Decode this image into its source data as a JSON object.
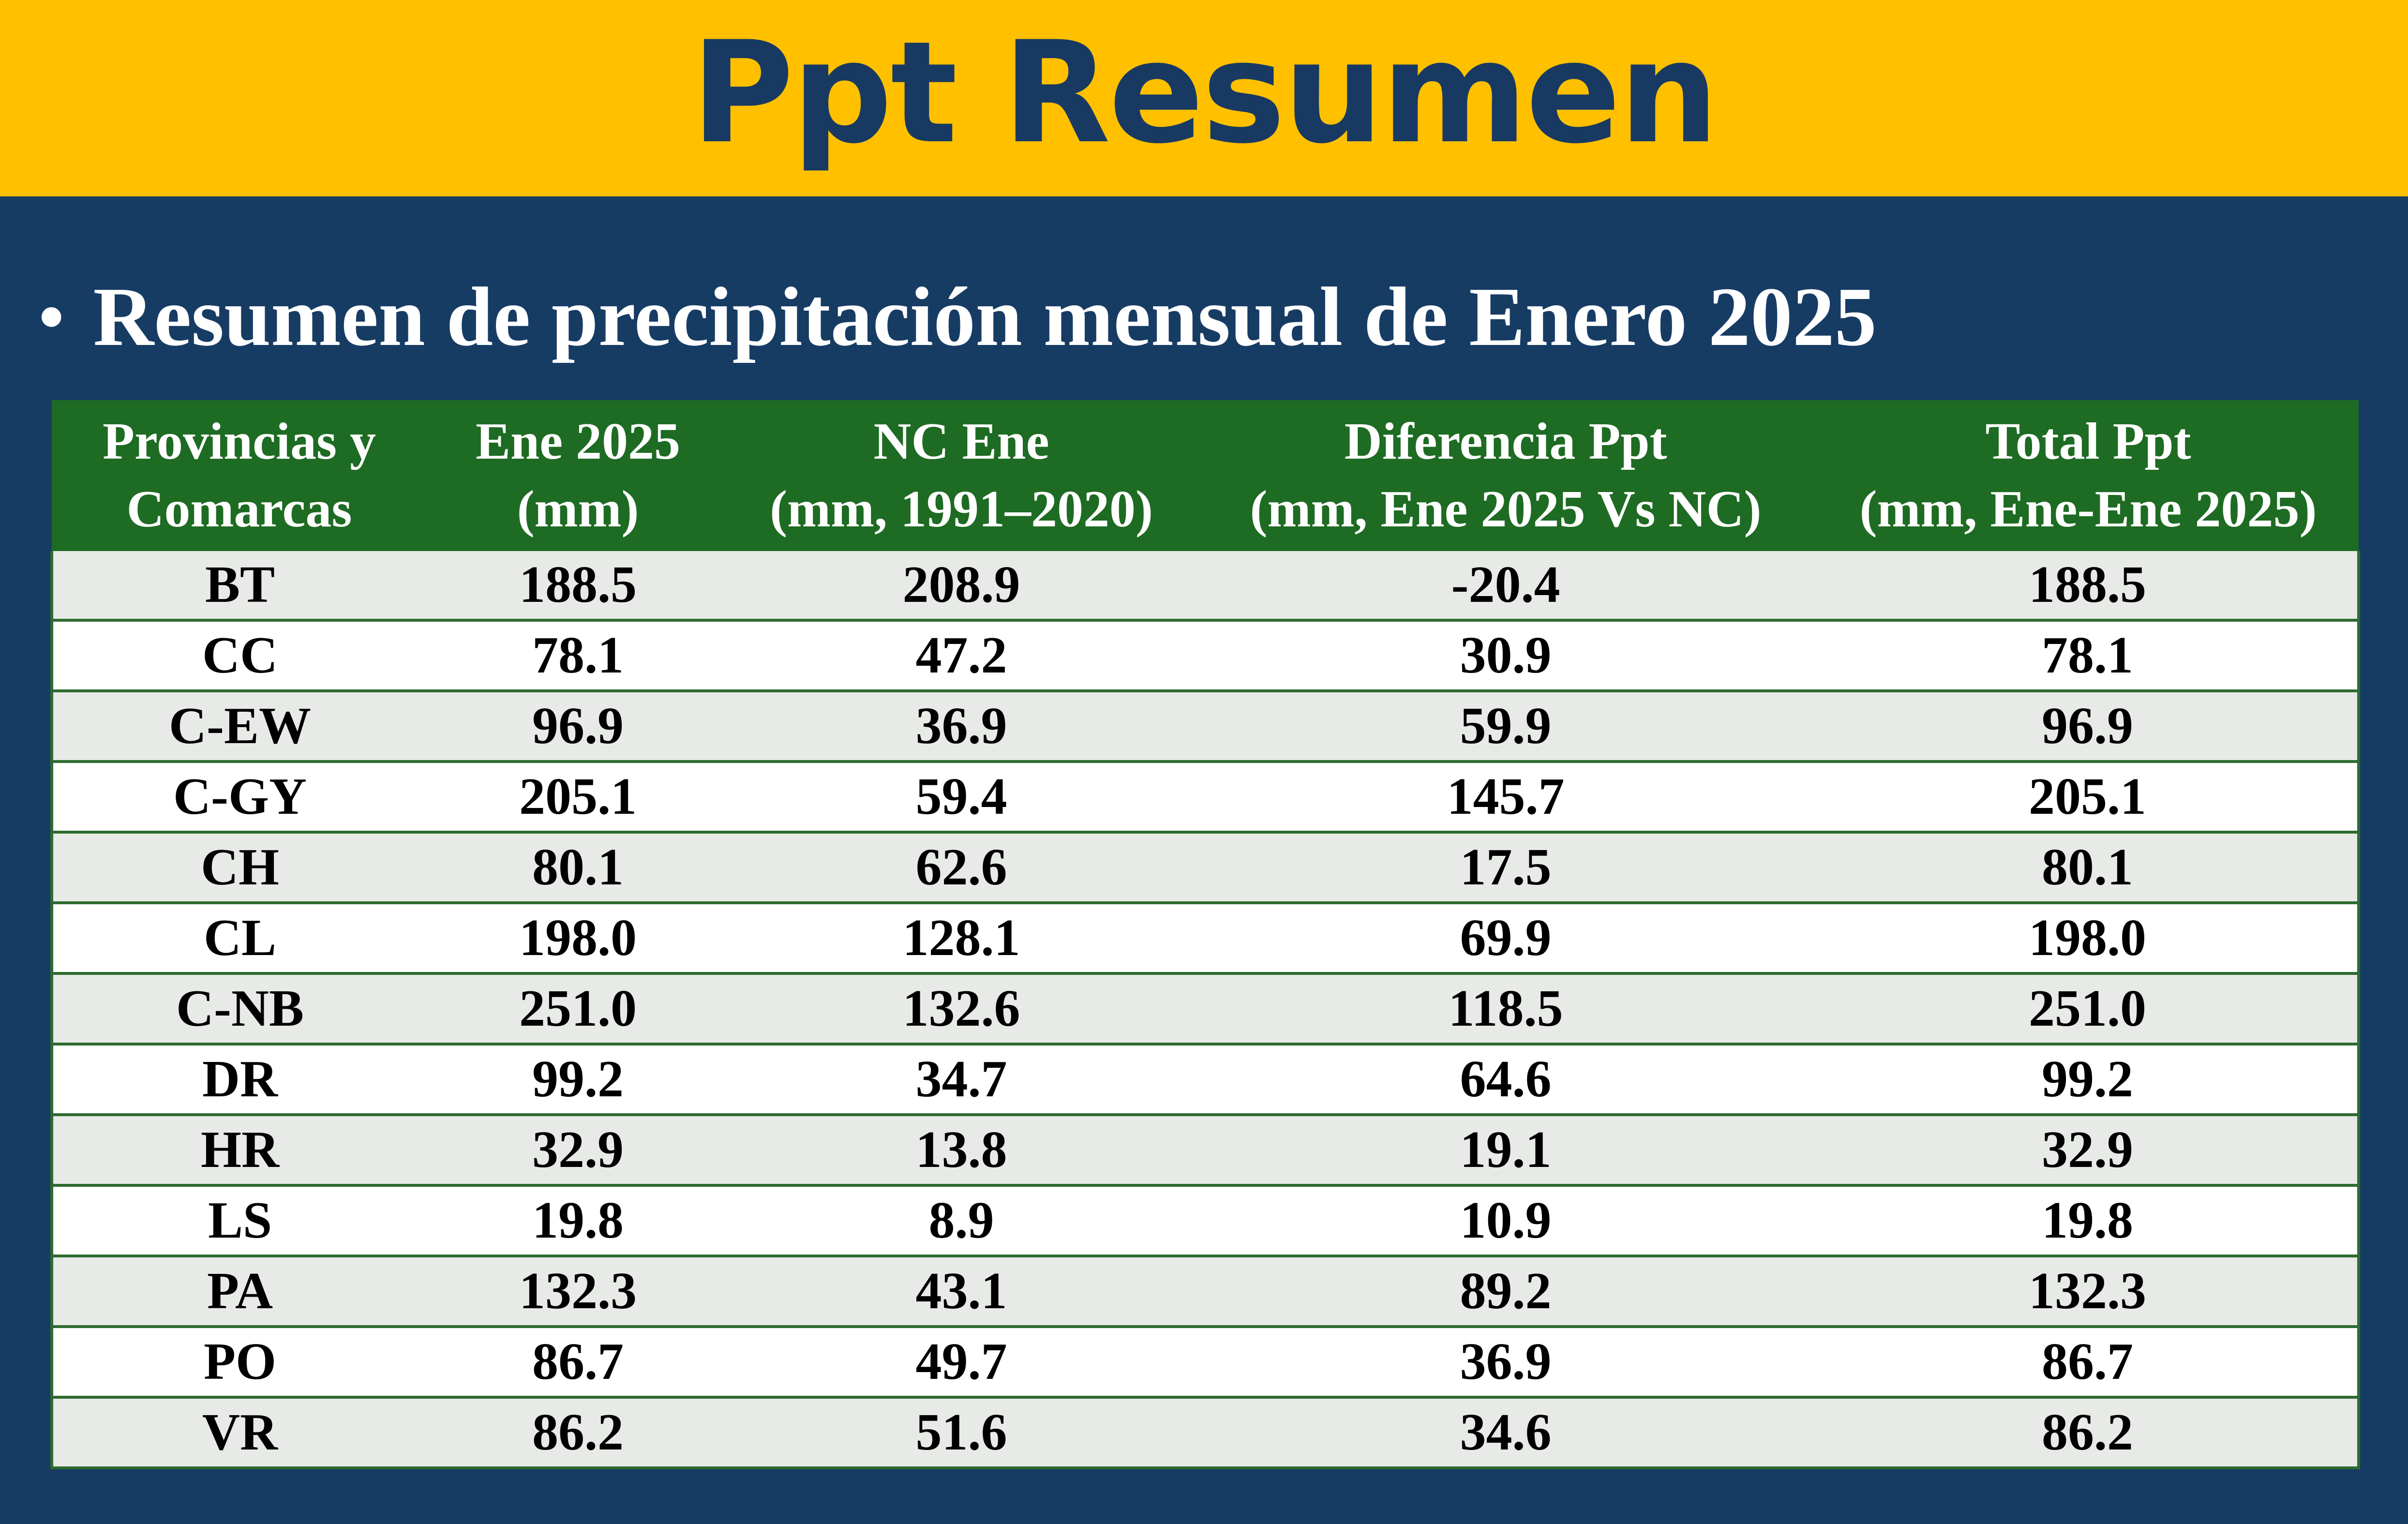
{
  "title": "Ppt Resumen",
  "subtitle": {
    "bullet": "•",
    "text": "Resumen de precipitación mensual de Enero 2025"
  },
  "colors": {
    "background": "#173C64",
    "banner": "#FFC000",
    "title_text": "#183A62",
    "header_bg": "#1E6B23",
    "row_alt": "#E7EAE6",
    "row": "#FFFFFF"
  },
  "table": {
    "headers": [
      [
        "Provincias y",
        "Comarcas"
      ],
      [
        "Ene 2025",
        "(mm)"
      ],
      [
        "NC Ene",
        "(mm, 1991–2020)"
      ],
      [
        "Diferencia Ppt",
        "(mm, Ene 2025 Vs NC)"
      ],
      [
        "Total Ppt",
        "(mm, Ene-Ene 2025)"
      ]
    ],
    "rows": [
      [
        "BT",
        "188.5",
        "208.9",
        "-20.4",
        "188.5"
      ],
      [
        "CC",
        "78.1",
        "47.2",
        "30.9",
        "78.1"
      ],
      [
        "C-EW",
        "96.9",
        "36.9",
        "59.9",
        "96.9"
      ],
      [
        "C-GY",
        "205.1",
        "59.4",
        "145.7",
        "205.1"
      ],
      [
        "CH",
        "80.1",
        "62.6",
        "17.5",
        "80.1"
      ],
      [
        "CL",
        "198.0",
        "128.1",
        "69.9",
        "198.0"
      ],
      [
        "C-NB",
        "251.0",
        "132.6",
        "118.5",
        "251.0"
      ],
      [
        "DR",
        "99.2",
        "34.7",
        "64.6",
        "99.2"
      ],
      [
        "HR",
        "32.9",
        "13.8",
        "19.1",
        "32.9"
      ],
      [
        "LS",
        "19.8",
        "8.9",
        "10.9",
        "19.8"
      ],
      [
        "PA",
        "132.3",
        "43.1",
        "89.2",
        "132.3"
      ],
      [
        "PO",
        "86.7",
        "49.7",
        "36.9",
        "86.7"
      ],
      [
        "VR",
        "86.2",
        "51.6",
        "34.6",
        "86.2"
      ]
    ]
  }
}
